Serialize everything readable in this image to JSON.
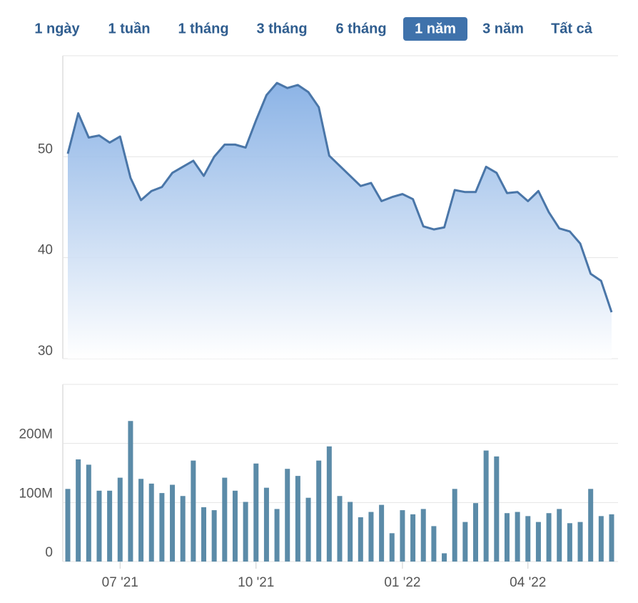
{
  "range_selector": {
    "options": [
      "1 ngày",
      "1 tuần",
      "1 tháng",
      "3 tháng",
      "6 tháng",
      "1 năm",
      "3 năm",
      "Tất cả"
    ],
    "active": 5
  },
  "chart_data": [
    {
      "type": "area",
      "color": "#4a76a8",
      "ylim": [
        30,
        60
      ],
      "yticks": [
        30,
        40,
        50
      ],
      "grid": true,
      "values": [
        50.3,
        54.3,
        51.9,
        52.1,
        51.4,
        52.0,
        47.9,
        45.7,
        46.6,
        47.0,
        48.4,
        49.0,
        49.6,
        48.1,
        50.0,
        51.2,
        51.2,
        50.9,
        53.6,
        56.1,
        57.3,
        56.8,
        57.1,
        56.4,
        54.9,
        50.1,
        49.1,
        48.1,
        47.1,
        47.4,
        45.6,
        46.0,
        46.3,
        45.8,
        43.1,
        42.8,
        43.0,
        46.7,
        46.5,
        46.5,
        49.0,
        48.4,
        46.4,
        46.5,
        45.6,
        46.6,
        44.5,
        42.9,
        42.6,
        41.4,
        38.4,
        37.7,
        34.6
      ]
    },
    {
      "type": "bar",
      "color": "#5b8ba8",
      "ylim": [
        0,
        300000000
      ],
      "yticks": [
        0,
        {
          "value": 100000000,
          "label": "100M"
        },
        {
          "value": 200000000,
          "label": "200M"
        }
      ],
      "grid": true,
      "categories": [
        null,
        null,
        null,
        null,
        null,
        "07 '21",
        null,
        null,
        null,
        null,
        null,
        null,
        null,
        null,
        null,
        null,
        null,
        null,
        "10 '21",
        null,
        null,
        null,
        null,
        null,
        null,
        null,
        null,
        null,
        null,
        null,
        null,
        null,
        "01 '22",
        null,
        null,
        null,
        null,
        null,
        null,
        null,
        null,
        null,
        null,
        null,
        "04 '22",
        null,
        null,
        null,
        null,
        null,
        null,
        null,
        null
      ],
      "values": [
        123000000,
        173000000,
        164000000,
        120000000,
        120000000,
        142000000,
        238000000,
        140000000,
        132000000,
        116000000,
        130000000,
        111000000,
        171000000,
        92000000,
        87000000,
        142000000,
        120000000,
        101000000,
        166000000,
        125000000,
        89000000,
        157000000,
        145000000,
        108000000,
        171000000,
        195000000,
        111000000,
        101000000,
        75000000,
        84000000,
        96000000,
        48000000,
        87000000,
        80000000,
        89000000,
        60000000,
        14000000,
        123000000,
        67000000,
        99000000,
        188000000,
        178000000,
        82000000,
        84000000,
        77000000,
        67000000,
        82000000,
        89000000,
        65000000,
        67000000,
        123000000,
        77000000,
        80000000
      ]
    }
  ]
}
